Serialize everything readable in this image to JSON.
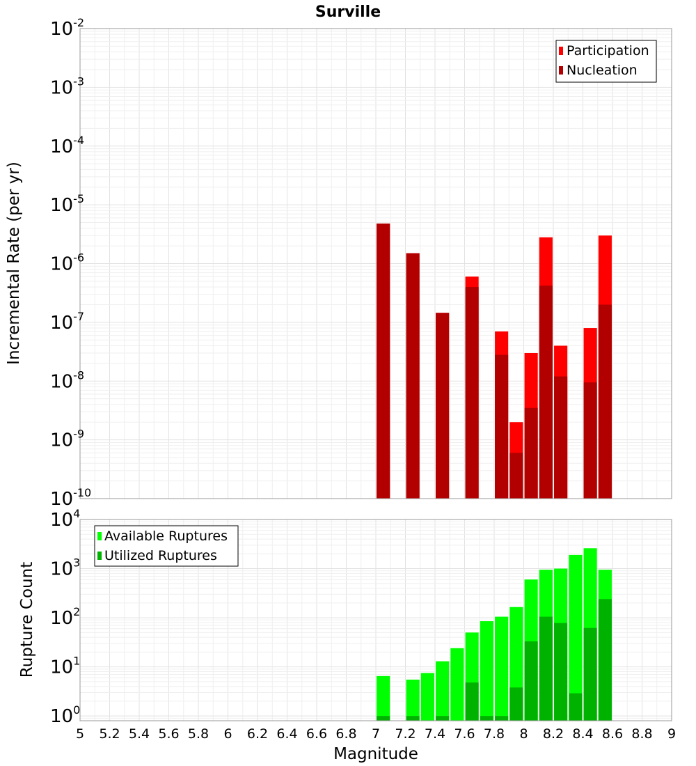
{
  "chart_data": [
    {
      "type": "bar",
      "panel": "top",
      "title": "Surville",
      "ylabel": "Incremental Rate (per yr)",
      "xlabel": "",
      "xlim": [
        5,
        9
      ],
      "ylim": [
        1e-10,
        0.01
      ],
      "yscale": "log",
      "grid": true,
      "legend_position": "top-right",
      "bar_width": 0.09,
      "x": [
        7.05,
        7.25,
        7.45,
        7.65,
        7.85,
        7.95,
        8.05,
        8.15,
        8.25,
        8.45,
        8.55
      ],
      "series": [
        {
          "name": "Participation",
          "color": "#ff0000",
          "values": [
            4.8e-06,
            1.5e-06,
            1.45e-07,
            6e-07,
            7e-08,
            2e-09,
            3e-08,
            2.8e-06,
            4e-08,
            8e-08,
            3e-06
          ]
        },
        {
          "name": "Nucleation",
          "color": "#b20000",
          "values": [
            4.8e-06,
            1.5e-06,
            1.45e-07,
            4e-07,
            2.8e-08,
            6e-10,
            3.5e-09,
            4.2e-07,
            1.2e-08,
            9.5e-09,
            2e-07
          ]
        }
      ],
      "y_ticks": [
        {
          "base": "10",
          "exp": "-2",
          "value": 0.01
        },
        {
          "base": "10",
          "exp": "-3",
          "value": 0.001
        },
        {
          "base": "10",
          "exp": "-4",
          "value": 0.0001
        },
        {
          "base": "10",
          "exp": "-5",
          "value": 1e-05
        },
        {
          "base": "10",
          "exp": "-6",
          "value": 1e-06
        },
        {
          "base": "10",
          "exp": "-7",
          "value": 1e-07
        },
        {
          "base": "10",
          "exp": "-8",
          "value": 1e-08
        },
        {
          "base": "10",
          "exp": "-9",
          "value": 1e-09
        },
        {
          "base": "10",
          "exp": "-10",
          "value": 1e-10
        }
      ]
    },
    {
      "type": "bar",
      "panel": "bottom",
      "title": "",
      "xlabel": "Magnitude",
      "ylabel": "Rupture Count",
      "xlim": [
        5,
        9
      ],
      "ylim": [
        0.8,
        10000
      ],
      "yscale": "log",
      "grid": true,
      "legend_position": "top-left",
      "bar_width": 0.09,
      "x": [
        7.05,
        7.25,
        7.35,
        7.45,
        7.55,
        7.65,
        7.75,
        7.85,
        7.95,
        8.05,
        8.15,
        8.25,
        8.35,
        8.45,
        8.55
      ],
      "series": [
        {
          "name": "Available Ruptures",
          "color": "#00ff00",
          "values": [
            6.5,
            5.5,
            7.5,
            13,
            24,
            50,
            85,
            105,
            165,
            600,
            950,
            1000,
            1900,
            2600,
            950
          ]
        },
        {
          "name": "Utilized Ruptures",
          "color": "#00b200",
          "values": [
            1,
            1,
            0,
            1,
            0,
            4.8,
            1,
            1,
            3.8,
            33,
            105,
            78,
            2.9,
            62,
            240
          ]
        }
      ],
      "y_ticks": [
        {
          "base": "10",
          "exp": "4",
          "value": 10000
        },
        {
          "base": "10",
          "exp": "3",
          "value": 1000
        },
        {
          "base": "10",
          "exp": "2",
          "value": 100
        },
        {
          "base": "10",
          "exp": "1",
          "value": 10
        },
        {
          "base": "10",
          "exp": "0",
          "value": 1
        }
      ],
      "x_ticks": [
        "5",
        "5.2",
        "5.4",
        "5.6",
        "5.8",
        "6",
        "6.2",
        "6.4",
        "6.6",
        "6.8",
        "7",
        "7.2",
        "7.4",
        "7.6",
        "7.8",
        "8",
        "8.2",
        "8.4",
        "8.6",
        "8.8",
        "9"
      ]
    }
  ]
}
